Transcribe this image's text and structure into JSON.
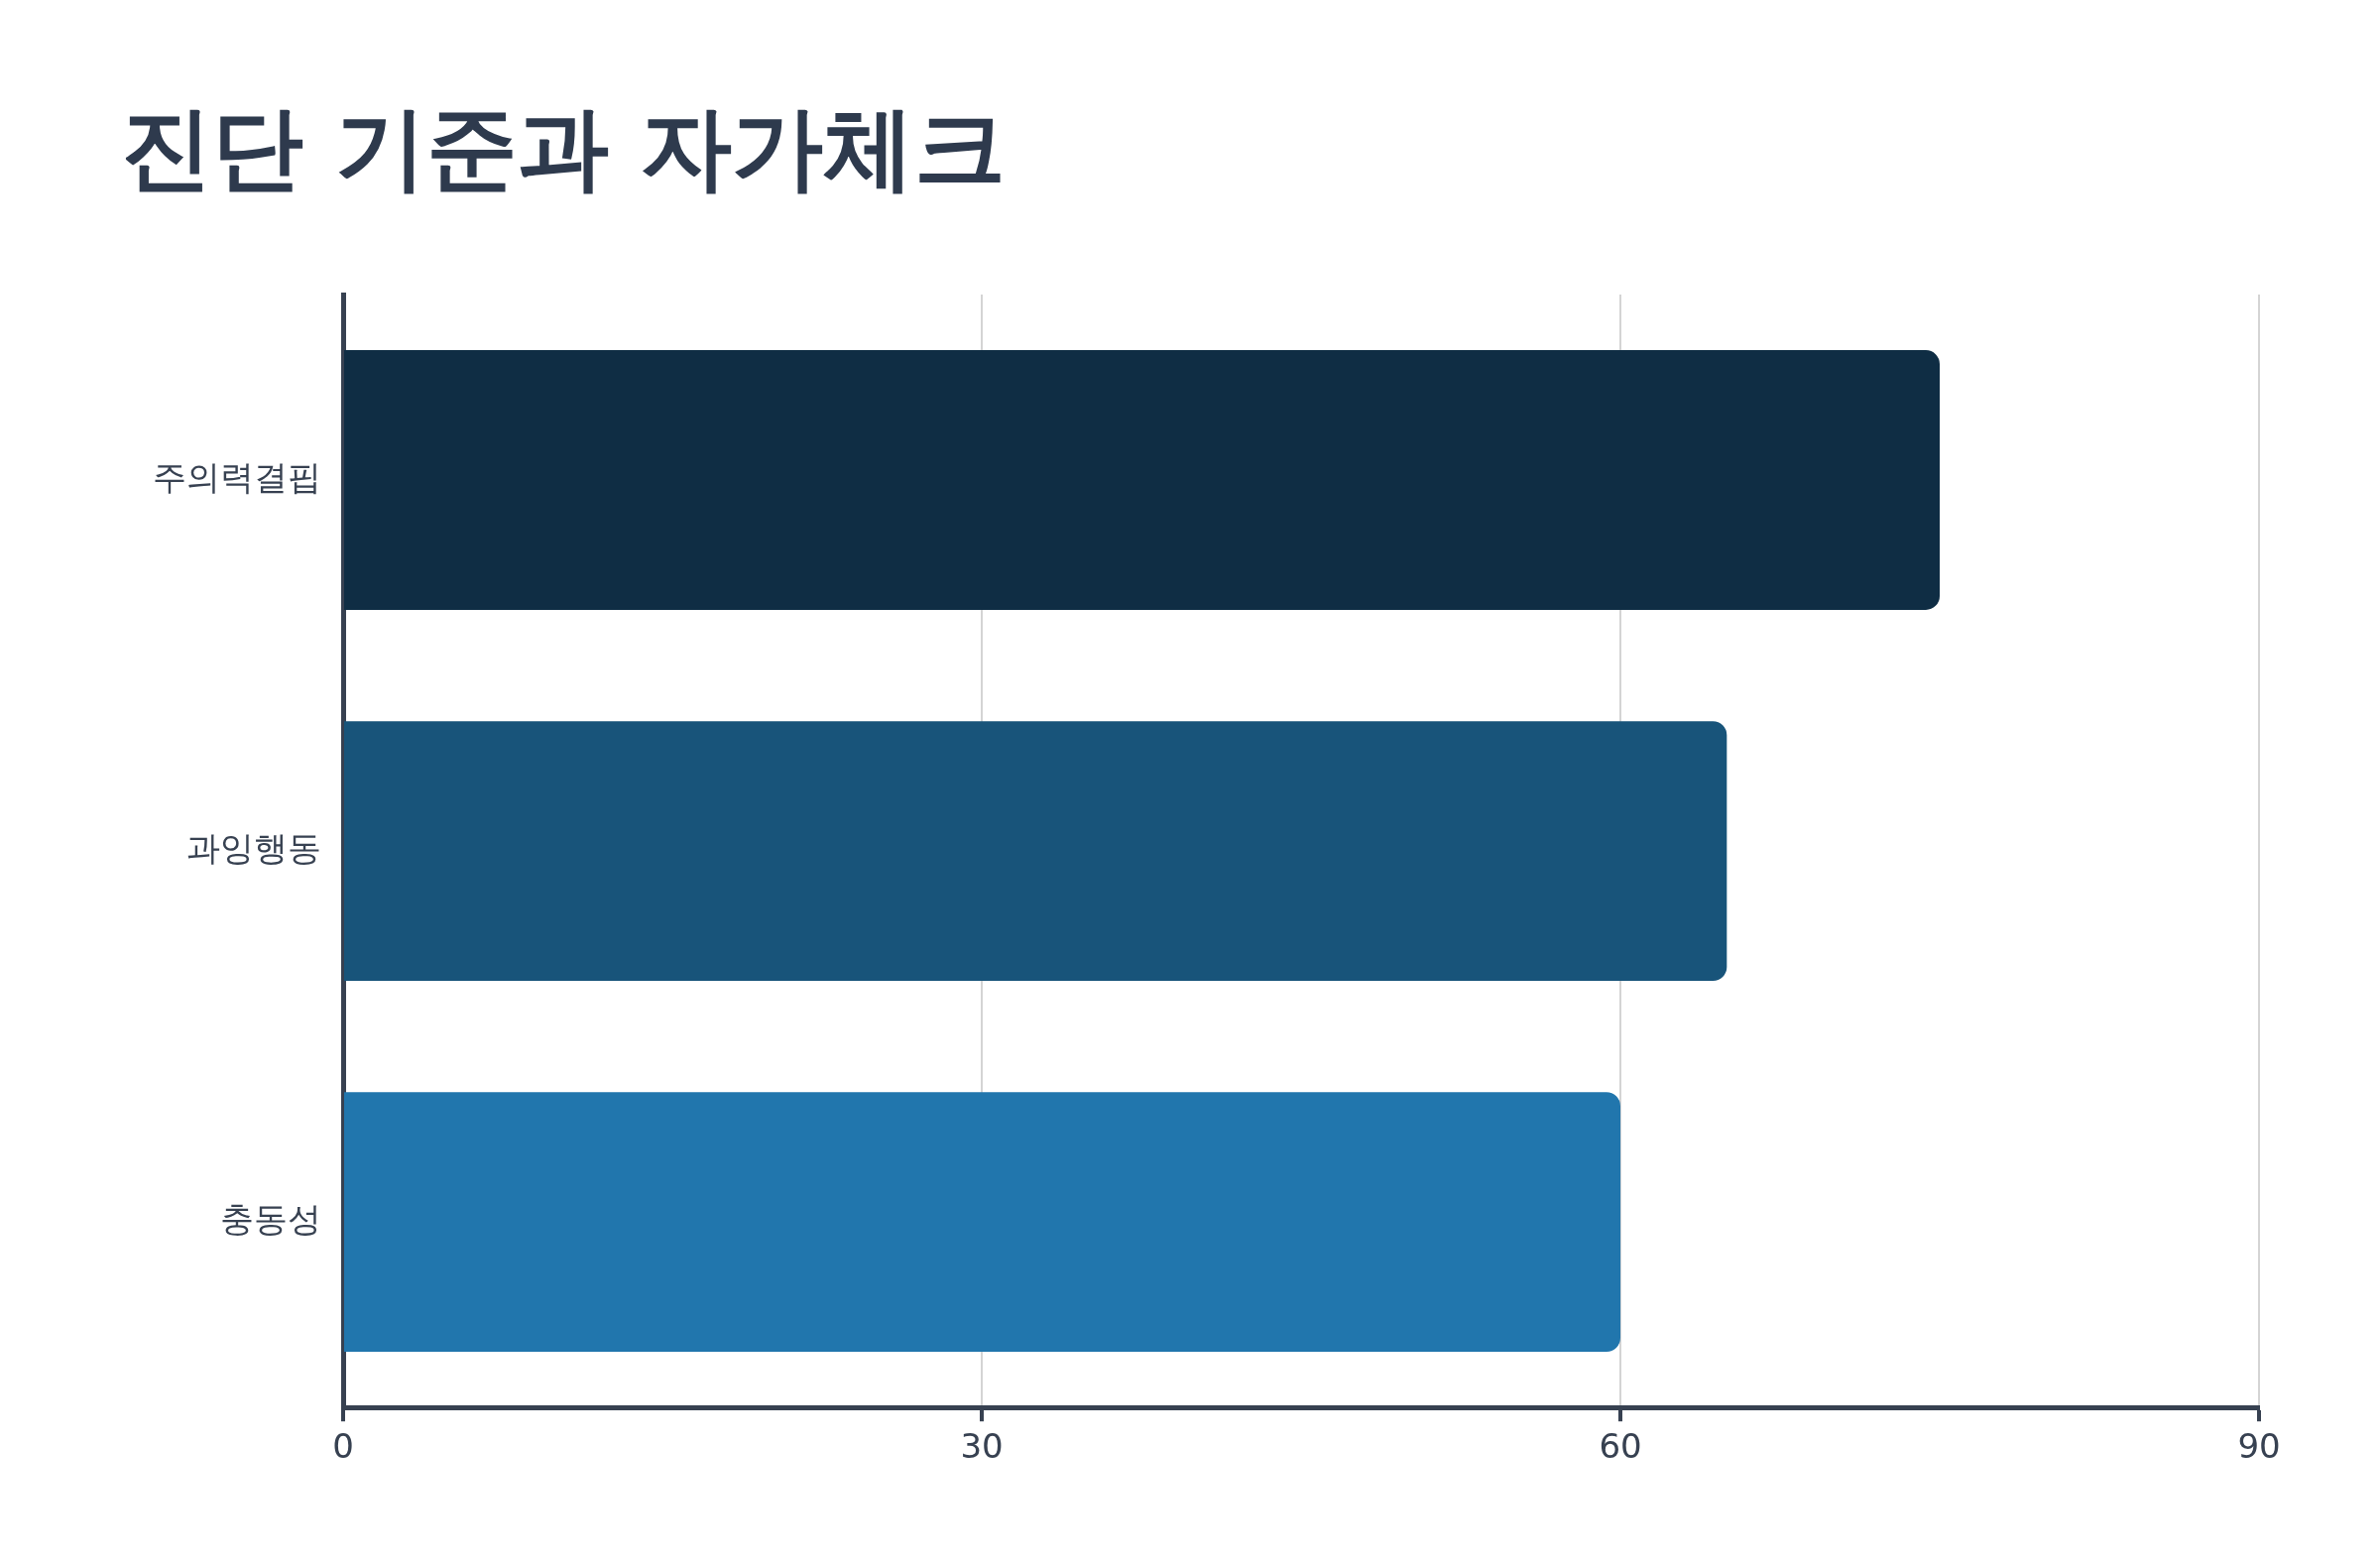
{
  "chart_data": {
    "type": "bar",
    "orientation": "horizontal",
    "title": "진단 기준과 자가체크",
    "categories": [
      "주의력결핍",
      "과잉행동",
      "충동성"
    ],
    "values": [
      75,
      65,
      60
    ],
    "colors": [
      "#0f2d44",
      "#18547a",
      "#2176ad"
    ],
    "xlim": [
      0,
      90
    ],
    "xticks": [
      0,
      30,
      60,
      90
    ],
    "grid": "x",
    "legend": false
  }
}
